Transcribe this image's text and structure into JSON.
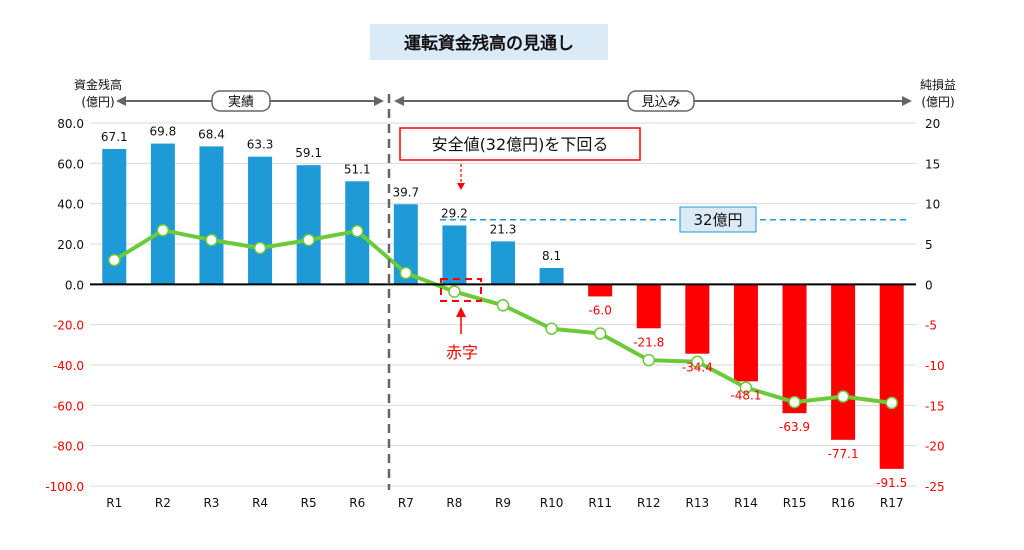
{
  "chart_data": {
    "type": "bar+line",
    "title": "運転資金残高の見通し",
    "ylabel_left": [
      "資金残高",
      "(億円)"
    ],
    "ylabel_right": [
      "純損益",
      "(億円)"
    ],
    "ylim_left": [
      -100,
      80
    ],
    "ylim_right": [
      -25,
      20
    ],
    "yticks_left": [
      "80.0",
      "60.0",
      "40.0",
      "20.0",
      "0.0",
      "-20.0",
      "-40.0",
      "-60.0",
      "-80.0",
      "-100.0"
    ],
    "yticks_right": [
      "20",
      "15",
      "10",
      "5",
      "0",
      "-5",
      "-10",
      "-15",
      "-20",
      "-25"
    ],
    "categories": [
      "R1",
      "R2",
      "R3",
      "R4",
      "R5",
      "R6",
      "R7",
      "R8",
      "R9",
      "R10",
      "R11",
      "R12",
      "R13",
      "R14",
      "R15",
      "R16",
      "R17"
    ],
    "bar_values": [
      67.1,
      69.8,
      68.4,
      63.3,
      59.1,
      51.1,
      39.7,
      29.2,
      21.3,
      8.1,
      -6.0,
      -21.8,
      -34.4,
      -48.1,
      -63.9,
      -77.1,
      -91.5
    ],
    "bar_labels": [
      "67.1",
      "69.8",
      "68.4",
      "63.3",
      "59.1",
      "51.1",
      "39.7",
      "29.2",
      "21.3",
      "8.1",
      "-6.0",
      "-21.8",
      "-34.4",
      "-48.1",
      "-63.9",
      "-77.1",
      "-91.5"
    ],
    "line_values": [
      3.0,
      6.7,
      5.5,
      4.5,
      5.5,
      6.6,
      1.4,
      -0.9,
      -2.6,
      -5.5,
      -6.1,
      -9.4,
      -9.6,
      -12.8,
      -14.6,
      -13.9,
      -14.7
    ],
    "grid": true,
    "colors": {
      "positive_bar": "#1e9ad6",
      "negative_bar": "#ff0000",
      "line": "#6cc93a",
      "threshold": "#1e9ad6",
      "annotation": "#ff0000"
    },
    "periods": [
      {
        "label": "実績"
      },
      {
        "label": "見込み"
      }
    ],
    "threshold": {
      "value": 32,
      "label": "32億円"
    },
    "annotations": {
      "callout": "安全値(32億円)を下回る",
      "deficit": "赤字"
    }
  }
}
